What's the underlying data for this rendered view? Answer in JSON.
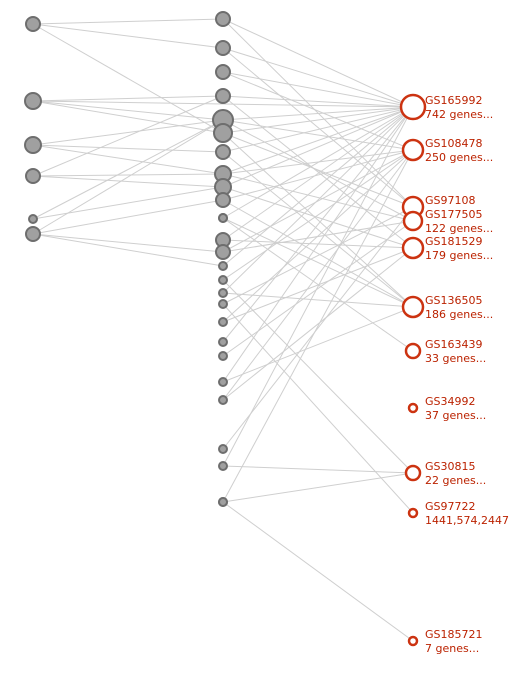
{
  "network": {
    "gene_nodes": [
      {
        "id": "g1",
        "size": 7
      },
      {
        "id": "g2",
        "size": 8
      },
      {
        "id": "g3",
        "size": 8
      },
      {
        "id": "g4",
        "size": 7
      },
      {
        "id": "g5",
        "size": 4
      },
      {
        "id": "g6",
        "size": 7
      },
      {
        "id": "g7",
        "size": 7
      },
      {
        "id": "g8",
        "size": 7
      },
      {
        "id": "g9",
        "size": 7
      },
      {
        "id": "g10",
        "size": 7
      },
      {
        "id": "g11",
        "size": 10
      },
      {
        "id": "g12",
        "size": 9
      },
      {
        "id": "g13",
        "size": 7
      },
      {
        "id": "g14",
        "size": 8
      },
      {
        "id": "g15",
        "size": 8
      },
      {
        "id": "g16",
        "size": 7
      },
      {
        "id": "g17",
        "size": 4
      },
      {
        "id": "g18",
        "size": 7
      },
      {
        "id": "g19",
        "size": 7
      },
      {
        "id": "g20",
        "size": 4
      },
      {
        "id": "g21",
        "size": 4
      },
      {
        "id": "g22",
        "size": 4
      },
      {
        "id": "g23",
        "size": 4
      },
      {
        "id": "g24",
        "size": 4
      },
      {
        "id": "g25",
        "size": 4
      },
      {
        "id": "g26",
        "size": 4
      },
      {
        "id": "g27",
        "size": 4
      },
      {
        "id": "g28",
        "size": 4
      },
      {
        "id": "g29",
        "size": 4
      },
      {
        "id": "g30",
        "size": 4
      },
      {
        "id": "g31",
        "size": 4
      },
      {
        "id": "g32",
        "size": 4
      },
      {
        "id": "g33",
        "size": 4
      }
    ],
    "gene_sets": [
      {
        "id": "GS165992",
        "name": "GS165992",
        "detail": "742 genes...",
        "size": 12
      },
      {
        "id": "GS108478",
        "name": "GS108478",
        "detail": "250 genes...",
        "size": 10
      },
      {
        "id": "GS97108",
        "name": "GS97108",
        "detail": "",
        "size": 10
      },
      {
        "id": "GS177505",
        "name": "GS177505",
        "detail": "122 genes...",
        "size": 9
      },
      {
        "id": "GS181529",
        "name": "GS181529",
        "detail": "179 genes...",
        "size": 10
      },
      {
        "id": "GS136505",
        "name": "GS136505",
        "detail": "186 genes...",
        "size": 10
      },
      {
        "id": "GS163439",
        "name": "GS163439",
        "detail": "33 genes...",
        "size": 7
      },
      {
        "id": "GS34992",
        "name": "GS34992",
        "detail": "37 genes...",
        "size": 4
      },
      {
        "id": "GS30815",
        "name": "GS30815",
        "detail": "22 genes...",
        "size": 7
      },
      {
        "id": "GS97722",
        "name": "GS97722",
        "detail": "1441,574,2447",
        "size": 4
      },
      {
        "id": "GS185721",
        "name": "GS185721",
        "detail": "7 genes...",
        "size": 4
      }
    ],
    "edges": [
      [
        "g1",
        "g7"
      ],
      [
        "g1",
        "g8"
      ],
      [
        "g1",
        "g12"
      ],
      [
        "g2",
        "g10"
      ],
      [
        "g2",
        "g11"
      ],
      [
        "g2",
        "g12"
      ],
      [
        "g2",
        "GS165992"
      ],
      [
        "g3",
        "g11"
      ],
      [
        "g3",
        "g13"
      ],
      [
        "g3",
        "g14"
      ],
      [
        "g4",
        "g10"
      ],
      [
        "g4",
        "g14"
      ],
      [
        "g4",
        "g15"
      ],
      [
        "g5",
        "g11"
      ],
      [
        "g5",
        "g15"
      ],
      [
        "g6",
        "g11"
      ],
      [
        "g6",
        "g16"
      ],
      [
        "g6",
        "g19"
      ],
      [
        "g6",
        "g20"
      ],
      [
        "g7",
        "GS165992"
      ],
      [
        "g7",
        "GS97108"
      ],
      [
        "g8",
        "GS165992"
      ],
      [
        "g8",
        "GS97108"
      ],
      [
        "g9",
        "GS165992"
      ],
      [
        "g9",
        "GS108478"
      ],
      [
        "g10",
        "GS165992"
      ],
      [
        "g10",
        "GS181529"
      ],
      [
        "g11",
        "GS165992"
      ],
      [
        "g11",
        "GS108478"
      ],
      [
        "g11",
        "GS177505"
      ],
      [
        "g12",
        "GS165992"
      ],
      [
        "g12",
        "GS97108"
      ],
      [
        "g12",
        "GS136505"
      ],
      [
        "g13",
        "GS165992"
      ],
      [
        "g13",
        "GS136505"
      ],
      [
        "g14",
        "GS165992"
      ],
      [
        "g14",
        "GS108478"
      ],
      [
        "g14",
        "GS177505"
      ],
      [
        "g15",
        "GS165992"
      ],
      [
        "g15",
        "GS181529"
      ],
      [
        "g16",
        "GS108478"
      ],
      [
        "g16",
        "GS136505"
      ],
      [
        "g17",
        "GS165992"
      ],
      [
        "g17",
        "GS163439"
      ],
      [
        "g18",
        "GS165992"
      ],
      [
        "g18",
        "GS181529"
      ],
      [
        "g19",
        "GS108478"
      ],
      [
        "g19",
        "GS177505"
      ],
      [
        "g20",
        "GS165992"
      ],
      [
        "g21",
        "GS108478"
      ],
      [
        "g21",
        "GS30815"
      ],
      [
        "g22",
        "GS165992"
      ],
      [
        "g22",
        "GS136505"
      ],
      [
        "g23",
        "GS97108"
      ],
      [
        "g23",
        "GS97722"
      ],
      [
        "g24",
        "GS108478"
      ],
      [
        "g24",
        "GS181529"
      ],
      [
        "g25",
        "GS165992"
      ],
      [
        "g26",
        "GS177505"
      ],
      [
        "g27",
        "GS165992"
      ],
      [
        "g27",
        "GS136505"
      ],
      [
        "g28",
        "GS108478"
      ],
      [
        "g28",
        "GS181529"
      ],
      [
        "g29",
        "GS97108"
      ],
      [
        "g30",
        "GS165992"
      ],
      [
        "g30",
        "GS30815"
      ],
      [
        "g31",
        "GS108478"
      ],
      [
        "g31",
        "GS30815"
      ],
      [
        "g32",
        "GS136505"
      ],
      [
        "g33",
        "GS185721"
      ]
    ]
  }
}
